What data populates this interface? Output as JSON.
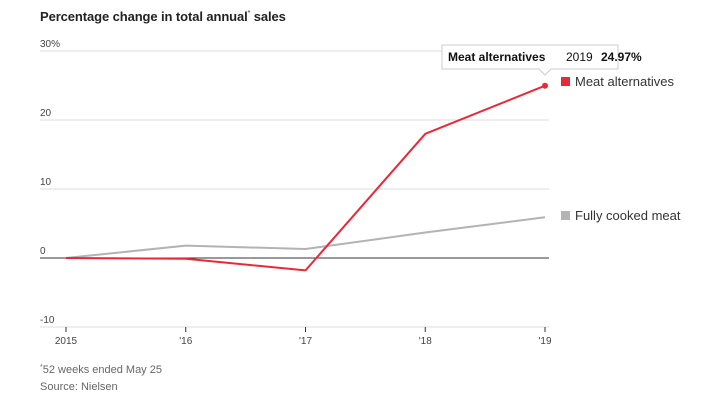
{
  "chart_data": {
    "type": "line",
    "title": "Percentage change in total annual",
    "title_marker": "*",
    "title_suffix": "sales",
    "x": [
      "2015",
      "'16",
      "'17",
      "'18",
      "'19"
    ],
    "ylim": [
      -10,
      30
    ],
    "yticks": [
      -10,
      0,
      10,
      20,
      30
    ],
    "ytick_labels": [
      "-10",
      "0",
      "10",
      "20",
      "30%"
    ],
    "grid": true,
    "series": [
      {
        "name": "Fully cooked meat",
        "values": [
          0,
          1.8,
          1.3,
          3.7,
          5.9
        ],
        "color": "#b3b3b3"
      },
      {
        "name": "Meat alternatives",
        "values": [
          0,
          -0.1,
          -1.8,
          18,
          24.97
        ],
        "color": "#e8293a"
      }
    ],
    "tooltip": {
      "series": "Meat alternatives",
      "year": "2019",
      "value": "24.97%"
    }
  },
  "footnote": {
    "marker": "*",
    "text": "52 weeks ended May 25"
  },
  "source": "Source: Nielsen"
}
